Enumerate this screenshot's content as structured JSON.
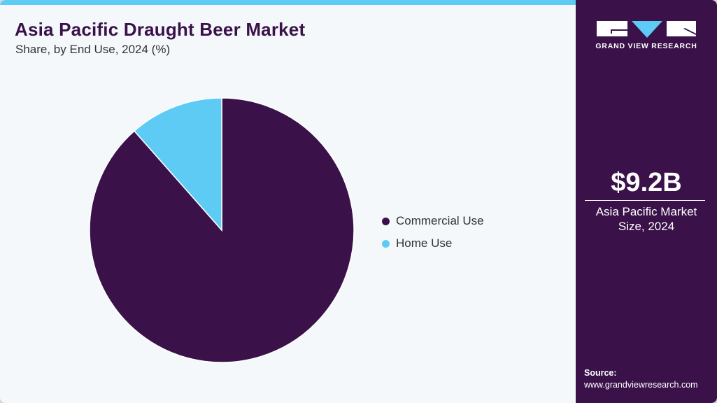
{
  "header": {
    "title": "Asia Pacific Draught Beer Market",
    "subtitle": "Share, by End Use, 2024 (%)"
  },
  "legend": {
    "items": [
      {
        "label": "Commercial Use",
        "color": "#3a1149"
      },
      {
        "label": "Home Use",
        "color": "#5ecbf5"
      }
    ]
  },
  "sidebar": {
    "brand": "GRAND VIEW RESEARCH",
    "market_value": "$9.2B",
    "market_label_line1": "Asia Pacific Market",
    "market_label_line2": "Size, 2024",
    "source_heading": "Source:",
    "source_url": "www.grandviewresearch.com"
  },
  "colors": {
    "accent_bar": "#5ecbf5",
    "primary": "#3a1149",
    "background": "#f4f8fb"
  },
  "chart_data": {
    "type": "pie",
    "title": "Asia Pacific Draught Beer Market",
    "subtitle": "Share, by End Use, 2024 (%)",
    "categories": [
      "Commercial Use",
      "Home Use"
    ],
    "values": [
      88.5,
      11.5
    ],
    "colors": [
      "#3a1149",
      "#5ecbf5"
    ],
    "legend_position": "right",
    "start_angle_deg": 0,
    "direction": "clockwise",
    "annotations": [
      "$9.2B Asia Pacific Market Size, 2024"
    ]
  }
}
